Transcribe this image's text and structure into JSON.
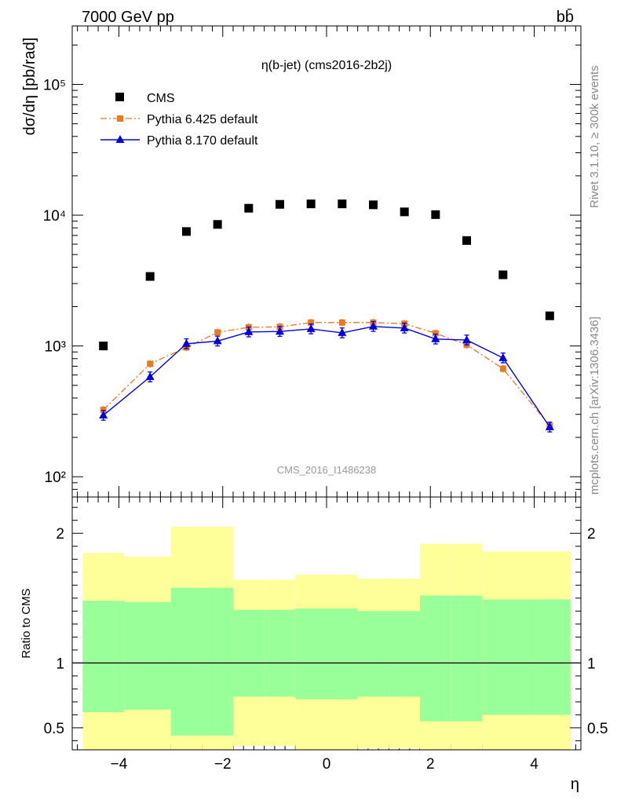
{
  "header": {
    "energy_label": "7000 GeV pp",
    "process_label": "bb̄"
  },
  "side_text": {
    "rivet": "Rivet 3.1.10, ≥ 300k events",
    "mcplots": "mcplots.cern.ch [arXiv:1306.3436]"
  },
  "chart_data": [
    {
      "type": "scatter",
      "title": "η(b-jet) (cms2016-2b2j)",
      "watermark": "CMS_2016_I1486238",
      "ylabel": "dσ/dη [pb/rad]",
      "xlabel": "",
      "yscale": "log",
      "xlim": [
        -4.9,
        4.9
      ],
      "ylim": [
        70,
        280000
      ],
      "y_tick_labels": [
        "10²",
        "10³",
        "10⁴",
        "10⁵"
      ],
      "y_tick_values": [
        100,
        1000,
        10000,
        100000
      ],
      "legend": [
        {
          "name": "CMS",
          "color": "#000000",
          "marker": "square"
        },
        {
          "name": "Pythia 6.425 default",
          "color": "#ee7722",
          "marker": "square-dashdot"
        },
        {
          "name": "Pythia 8.170 default",
          "color": "#0000dd",
          "marker": "triangle"
        }
      ],
      "series": [
        {
          "name": "CMS",
          "x": [
            -4.3,
            -3.4,
            -2.7,
            -2.1,
            -1.5,
            -0.9,
            -0.3,
            0.3,
            0.9,
            1.5,
            2.1,
            2.7,
            3.4,
            4.3
          ],
          "y": [
            1000,
            3400,
            7500,
            8500,
            11300,
            12100,
            12200,
            12200,
            12000,
            10600,
            10100,
            6400,
            3500,
            1700
          ]
        },
        {
          "name": "Pythia 6.425 default",
          "x": [
            -4.3,
            -3.4,
            -2.7,
            -2.1,
            -1.5,
            -0.9,
            -0.3,
            0.3,
            0.9,
            1.5,
            2.1,
            2.7,
            3.4,
            4.3
          ],
          "y": [
            325,
            730,
            975,
            1270,
            1390,
            1400,
            1510,
            1510,
            1510,
            1480,
            1250,
            1020,
            670,
            245
          ]
        },
        {
          "name": "Pythia 8.170 default",
          "x": [
            -4.3,
            -3.4,
            -2.7,
            -2.1,
            -1.5,
            -0.9,
            -0.3,
            0.3,
            0.9,
            1.5,
            2.1,
            2.7,
            3.4,
            4.3
          ],
          "y": [
            295,
            580,
            1040,
            1090,
            1280,
            1290,
            1350,
            1260,
            1410,
            1370,
            1130,
            1110,
            810,
            240
          ]
        }
      ]
    },
    {
      "type": "area",
      "ylabel": "Ratio to CMS",
      "xlabel": "η",
      "xlim": [
        -4.9,
        4.9
      ],
      "ylim": [
        0.33,
        2.28
      ],
      "x_ticks": [
        -4,
        -2,
        0,
        2,
        4
      ],
      "x_tick_labels": [
        "−4",
        "−2",
        "0",
        "2",
        "4"
      ],
      "y_ticks": [
        0.5,
        1,
        2
      ],
      "y_tick_labels": [
        "0.5",
        "1",
        "2"
      ],
      "reference_line": 1,
      "bins": [
        {
          "lo": -4.7,
          "hi": -3.9,
          "green": [
            0.62,
            1.48
          ],
          "yellow": [
            0.28,
            1.85
          ]
        },
        {
          "lo": -3.9,
          "hi": -3.0,
          "green": [
            0.64,
            1.47
          ],
          "yellow": [
            0.27,
            1.82
          ]
        },
        {
          "lo": -3.0,
          "hi": -2.4,
          "green": [
            0.44,
            1.58
          ],
          "yellow": [
            0.28,
            2.05
          ]
        },
        {
          "lo": -2.4,
          "hi": -1.8,
          "green": [
            0.44,
            1.58
          ],
          "yellow": [
            0.28,
            2.05
          ]
        },
        {
          "lo": -1.8,
          "hi": -1.2,
          "green": [
            0.74,
            1.41
          ],
          "yellow": [
            0.36,
            1.64
          ]
        },
        {
          "lo": -1.2,
          "hi": -0.6,
          "green": [
            0.74,
            1.41
          ],
          "yellow": [
            0.36,
            1.64
          ]
        },
        {
          "lo": -0.6,
          "hi": 0.0,
          "green": [
            0.72,
            1.42
          ],
          "yellow": [
            0.33,
            1.68
          ]
        },
        {
          "lo": 0.0,
          "hi": 0.6,
          "green": [
            0.72,
            1.42
          ],
          "yellow": [
            0.33,
            1.68
          ]
        },
        {
          "lo": 0.6,
          "hi": 1.2,
          "green": [
            0.74,
            1.4
          ],
          "yellow": [
            0.34,
            1.65
          ]
        },
        {
          "lo": 1.2,
          "hi": 1.8,
          "green": [
            0.74,
            1.4
          ],
          "yellow": [
            0.34,
            1.65
          ]
        },
        {
          "lo": 1.8,
          "hi": 2.4,
          "green": [
            0.55,
            1.52
          ],
          "yellow": [
            0.27,
            1.92
          ]
        },
        {
          "lo": 2.4,
          "hi": 3.0,
          "green": [
            0.55,
            1.52
          ],
          "yellow": [
            0.27,
            1.92
          ]
        },
        {
          "lo": 3.0,
          "hi": 3.9,
          "green": [
            0.6,
            1.49
          ],
          "yellow": [
            0.27,
            1.86
          ]
        },
        {
          "lo": 3.9,
          "hi": 4.7,
          "green": [
            0.6,
            1.49
          ],
          "yellow": [
            0.27,
            1.86
          ]
        }
      ]
    }
  ],
  "colors": {
    "data": "#000000",
    "pythia6": "#ee7722",
    "pythia8": "#0000dd",
    "band_inner": "#99ff99",
    "band_outer": "#ffff99",
    "watermark": "#999999",
    "side_text": "#888888"
  }
}
